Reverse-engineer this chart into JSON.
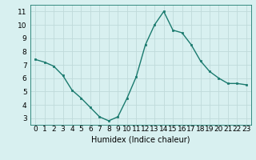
{
  "x": [
    0,
    1,
    2,
    3,
    4,
    5,
    6,
    7,
    8,
    9,
    10,
    11,
    12,
    13,
    14,
    15,
    16,
    17,
    18,
    19,
    20,
    21,
    22,
    23
  ],
  "y": [
    7.4,
    7.2,
    6.9,
    6.2,
    5.1,
    4.5,
    3.8,
    3.1,
    2.8,
    3.1,
    4.5,
    6.1,
    8.5,
    10.0,
    11.0,
    9.6,
    9.4,
    8.5,
    7.3,
    6.5,
    6.0,
    5.6,
    5.6,
    5.5
  ],
  "line_color": "#1a7a6e",
  "marker_color": "#1a7a6e",
  "bg_color": "#d8f0f0",
  "grid_color": "#c0dada",
  "xlabel": "Humidex (Indice chaleur)",
  "xlim": [
    -0.5,
    23.5
  ],
  "ylim": [
    2.5,
    11.5
  ],
  "yticks": [
    3,
    4,
    5,
    6,
    7,
    8,
    9,
    10,
    11
  ],
  "xtick_labels": [
    "0",
    "1",
    "2",
    "3",
    "4",
    "5",
    "6",
    "7",
    "8",
    "9",
    "10",
    "11",
    "12",
    "13",
    "14",
    "15",
    "16",
    "17",
    "18",
    "19",
    "20",
    "21",
    "22",
    "23"
  ],
  "xlabel_fontsize": 7,
  "tick_fontsize": 6.5
}
